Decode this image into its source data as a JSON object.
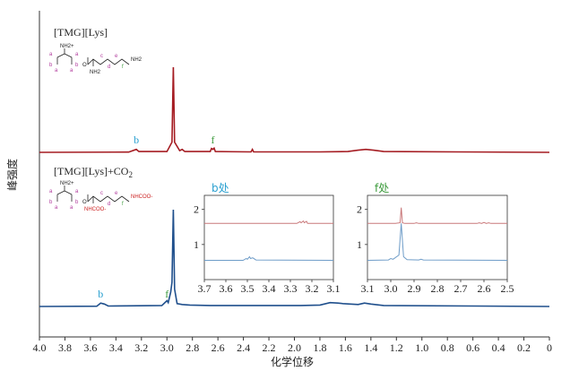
{
  "colors": {
    "top_spectrum": "#a51c22",
    "bottom_spectrum": "#1f4f8c",
    "inset_bottom_spectrum": "#6e9cc8",
    "inset_top_spectrum": "#c9787a",
    "label_blue": "#2aa0d0",
    "label_green": "#3a9a3a",
    "structure_red": "#cc2222",
    "structure_purple": "#b0399c",
    "structure_black": "#222222"
  },
  "chart_data": {
    "type": "line",
    "xlabel": "化学位移",
    "ylabel": "峰强度",
    "xlim": [
      4.0,
      0.0
    ],
    "x_reversed": true,
    "x_ticks": [
      "4.0",
      "3.8",
      "3.6",
      "3.4",
      "3.2",
      "3.0",
      "2.8",
      "2.6",
      "2.4",
      "2.2",
      "2.0",
      "1.8",
      "1.6",
      "1.4",
      "1.2",
      "1.0",
      "0.8",
      "0.6",
      "0.4",
      "0.2",
      "0"
    ],
    "series": [
      {
        "name": "[TMG][Lys]",
        "label_text": "[TMG][Lys]",
        "color": "#a51c22",
        "points": [
          [
            4.0,
            0
          ],
          [
            3.3,
            0.003
          ],
          [
            3.24,
            0.035
          ],
          [
            3.22,
            0.01
          ],
          [
            3.0,
            0.01
          ],
          [
            2.96,
            0.12
          ],
          [
            2.95,
            1.0
          ],
          [
            2.94,
            0.12
          ],
          [
            2.9,
            0.02
          ],
          [
            2.88,
            0.035
          ],
          [
            2.86,
            0.01
          ],
          [
            2.66,
            0.01
          ],
          [
            2.65,
            0.045
          ],
          [
            2.64,
            0.035
          ],
          [
            2.63,
            0.05
          ],
          [
            2.62,
            0.01
          ],
          [
            2.34,
            0.005
          ],
          [
            2.33,
            0.035
          ],
          [
            2.32,
            0.005
          ],
          [
            1.8,
            0.005
          ],
          [
            1.58,
            0.01
          ],
          [
            1.5,
            0.025
          ],
          [
            1.44,
            0.035
          ],
          [
            1.38,
            0.025
          ],
          [
            1.3,
            0.01
          ],
          [
            0.0,
            0
          ]
        ]
      },
      {
        "name": "[TMG][Lys]+CO2",
        "label_text": "[TMG][Lys]+CO",
        "label_sub": "2",
        "color": "#1f4f8c",
        "points": [
          [
            4.0,
            0
          ],
          [
            3.55,
            0.003
          ],
          [
            3.52,
            0.035
          ],
          [
            3.49,
            0.025
          ],
          [
            3.46,
            0.005
          ],
          [
            3.04,
            0.01
          ],
          [
            3.0,
            0.06
          ],
          [
            2.99,
            0.04
          ],
          [
            2.97,
            0.15
          ],
          [
            2.96,
            0.25
          ],
          [
            2.95,
            1.0
          ],
          [
            2.94,
            0.18
          ],
          [
            2.92,
            0.03
          ],
          [
            2.88,
            0.02
          ],
          [
            2.82,
            0.015
          ],
          [
            2.66,
            0.01
          ],
          [
            1.95,
            0.01
          ],
          [
            1.8,
            0.015
          ],
          [
            1.72,
            0.04
          ],
          [
            1.66,
            0.035
          ],
          [
            1.62,
            0.03
          ],
          [
            1.5,
            0.02
          ],
          [
            1.45,
            0.035
          ],
          [
            1.4,
            0.025
          ],
          [
            1.3,
            0.01
          ],
          [
            0.0,
            0
          ]
        ]
      }
    ],
    "peak_labels": [
      {
        "text": "b",
        "series": "[TMG][Lys]",
        "x": 3.24,
        "color": "#2aa0d0"
      },
      {
        "text": "f",
        "series": "[TMG][Lys]",
        "x": 2.64,
        "color": "#3a9a3a"
      },
      {
        "text": "b",
        "series": "[TMG][Lys]+CO2",
        "x": 3.52,
        "color": "#2aa0d0"
      },
      {
        "text": "f",
        "series": "[TMG][Lys]+CO2",
        "x": 3.0,
        "color": "#3a9a3a"
      }
    ],
    "insets": [
      {
        "title": "b处",
        "title_color": "#2aa0d0",
        "xlim": [
          3.7,
          3.1
        ],
        "x_ticks": [
          "3.7",
          "3.6",
          "3.5",
          "3.4",
          "3.3",
          "3.2",
          "3.1"
        ],
        "y_ticks": [
          "1",
          "2"
        ],
        "top_points": [
          [
            3.7,
            1.6
          ],
          [
            3.27,
            1.6
          ],
          [
            3.255,
            1.65
          ],
          [
            3.25,
            1.62
          ],
          [
            3.24,
            1.67
          ],
          [
            3.235,
            1.62
          ],
          [
            3.225,
            1.66
          ],
          [
            3.22,
            1.6
          ],
          [
            3.1,
            1.6
          ]
        ],
        "bottom_points": [
          [
            3.7,
            0.55
          ],
          [
            3.52,
            0.55
          ],
          [
            3.505,
            0.6
          ],
          [
            3.5,
            0.58
          ],
          [
            3.49,
            0.65
          ],
          [
            3.485,
            0.6
          ],
          [
            3.475,
            0.62
          ],
          [
            3.46,
            0.56
          ],
          [
            3.1,
            0.55
          ]
        ]
      },
      {
        "title": "f处",
        "title_color": "#3a9a3a",
        "xlim": [
          3.1,
          2.5
        ],
        "x_ticks": [
          "3.1",
          "3.0",
          "2.9",
          "2.8",
          "2.7",
          "2.6",
          "2.5"
        ],
        "y_ticks": [
          "1",
          "2"
        ],
        "top_points": [
          [
            3.1,
            1.6
          ],
          [
            2.98,
            1.6
          ],
          [
            2.96,
            1.62
          ],
          [
            2.955,
            2.05
          ],
          [
            2.95,
            1.62
          ],
          [
            2.94,
            1.6
          ],
          [
            2.9,
            1.6
          ],
          [
            2.89,
            1.62
          ],
          [
            2.88,
            1.6
          ],
          [
            2.63,
            1.6
          ],
          [
            2.62,
            1.62
          ],
          [
            2.61,
            1.6
          ],
          [
            2.6,
            1.63
          ],
          [
            2.59,
            1.6
          ],
          [
            2.58,
            1.62
          ],
          [
            2.57,
            1.6
          ],
          [
            2.5,
            1.6
          ]
        ],
        "bottom_points": [
          [
            3.1,
            0.55
          ],
          [
            3.01,
            0.56
          ],
          [
            3.0,
            0.6
          ],
          [
            2.99,
            0.58
          ],
          [
            2.965,
            0.7
          ],
          [
            2.955,
            1.6
          ],
          [
            2.945,
            0.65
          ],
          [
            2.93,
            0.57
          ],
          [
            2.88,
            0.56
          ],
          [
            2.87,
            0.58
          ],
          [
            2.86,
            0.56
          ],
          [
            2.5,
            0.55
          ]
        ]
      }
    ]
  },
  "structures": {
    "top": {
      "cation_plus": "NH2+",
      "letters": [
        "a",
        "a",
        "a",
        "a",
        "b",
        "b"
      ],
      "anion_labels": [
        "O",
        "NH2",
        "NH2",
        "c",
        "d",
        "e",
        "f"
      ]
    },
    "bottom": {
      "cation_plus": "NH2+",
      "letters": [
        "a",
        "a",
        "a",
        "a",
        "b",
        "b"
      ],
      "anion_labels": [
        "O",
        "NHCOO-",
        "NHCOO-",
        "c",
        "d",
        "e",
        "f"
      ]
    }
  }
}
